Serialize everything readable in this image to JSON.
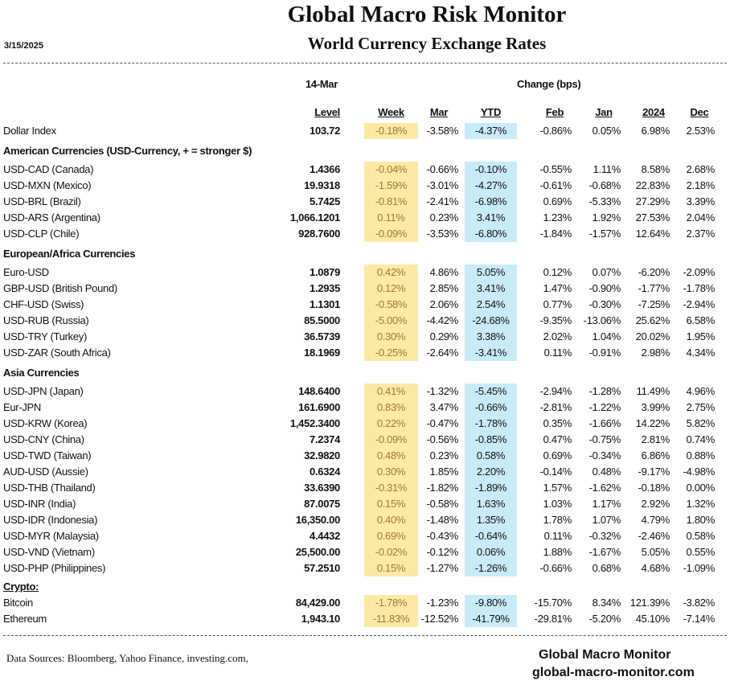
{
  "header": {
    "title": "Global Macro Risk Monitor",
    "subtitle": "World Currency Exchange Rates",
    "date": "3/15/2025"
  },
  "columns": {
    "as_of": "14-Mar",
    "change_label": "Change (bps)",
    "level": "Level",
    "week": "Week",
    "mar": "Mar",
    "ytd": "YTD",
    "feb": "Feb",
    "jan": "Jan",
    "y2024": "2024",
    "dec": "Dec"
  },
  "colors": {
    "week_highlight": "#fde9a6",
    "ytd_highlight": "#c9ebf8"
  },
  "sections": [
    {
      "title": "",
      "rows": [
        {
          "name": "Dollar Index",
          "values": [
            "103.72",
            "-0.18%",
            "-3.58%",
            "-4.37%",
            "-0.86%",
            "0.05%",
            "6.98%",
            "2.53%"
          ]
        }
      ]
    },
    {
      "title": "American Currencies (USD-Currency, + = stronger $)",
      "rows": [
        {
          "name": "USD-CAD (Canada)",
          "values": [
            "1.4366",
            "-0.04%",
            "-0.66%",
            "-0.10%",
            "-0.55%",
            "1.11%",
            "8.58%",
            "2.68%"
          ]
        },
        {
          "name": "USD-MXN  (Mexico)",
          "values": [
            "19.9318",
            "-1.59%",
            "-3.01%",
            "-4.27%",
            "-0.61%",
            "-0.68%",
            "22.83%",
            "2.18%"
          ]
        },
        {
          "name": "USD-BRL (Brazil)",
          "values": [
            "5.7425",
            "-0.81%",
            "-2.41%",
            "-6.98%",
            "0.69%",
            "-5.33%",
            "27.29%",
            "3.39%"
          ]
        },
        {
          "name": "USD-ARS (Argentina)",
          "values": [
            "1,066.1201",
            "0.11%",
            "0.23%",
            "3.41%",
            "1.23%",
            "1.92%",
            "27.53%",
            "2.04%"
          ]
        },
        {
          "name": "USD-CLP (Chile)",
          "values": [
            "928.7600",
            "-0.09%",
            "-3.53%",
            "-6.80%",
            "-1.84%",
            "-1.57%",
            "12.64%",
            "2.37%"
          ]
        }
      ]
    },
    {
      "title": "European/Africa Currencies",
      "rows": [
        {
          "name": "Euro-USD",
          "values": [
            "1.0879",
            "0.42%",
            "4.86%",
            "5.05%",
            "0.12%",
            "0.07%",
            "-6.20%",
            "-2.09%"
          ]
        },
        {
          "name": "GBP-USD (British Pound)",
          "values": [
            "1.2935",
            "0.12%",
            "2.85%",
            "3.41%",
            "1.47%",
            "-0.90%",
            "-1.77%",
            "-1.78%"
          ]
        },
        {
          "name": "CHF-USD (Swiss)",
          "values": [
            "1.1301",
            "-0.58%",
            "2.06%",
            "2.54%",
            "0.77%",
            "-0.30%",
            "-7.25%",
            "-2.94%"
          ]
        },
        {
          "name": "USD-RUB (Russia)",
          "values": [
            "85.5000",
            "-5.00%",
            "-4.42%",
            "-24.68%",
            "-9.35%",
            "-13.06%",
            "25.62%",
            "6.58%"
          ]
        },
        {
          "name": "USD-TRY (Turkey)",
          "values": [
            "36.5739",
            "0.30%",
            "0.29%",
            "3.38%",
            "2.02%",
            "1.04%",
            "20.02%",
            "1.95%"
          ]
        },
        {
          "name": "USD-ZAR (South Africa)",
          "values": [
            "18.1969",
            "-0.25%",
            "-2.64%",
            "-3.41%",
            "0.11%",
            "-0.91%",
            "2.98%",
            "4.34%"
          ]
        }
      ]
    },
    {
      "title": "Asia Currencies",
      "rows": [
        {
          "name": "USD-JPN (Japan)",
          "values": [
            "148.6400",
            "0.41%",
            "-1.32%",
            "-5.45%",
            "-2.94%",
            "-1.28%",
            "11.49%",
            "4.96%"
          ]
        },
        {
          "name": "Eur-JPN",
          "values": [
            "161.6900",
            "0.83%",
            "3.47%",
            "-0.66%",
            "-2.81%",
            "-1.22%",
            "3.99%",
            "2.75%"
          ]
        },
        {
          "name": "USD-KRW (Korea)",
          "values": [
            "1,452.3400",
            "0.22%",
            "-0.47%",
            "-1.78%",
            "0.35%",
            "-1.66%",
            "14.22%",
            "5.82%"
          ]
        },
        {
          "name": "USD-CNY (China)",
          "values": [
            "7.2374",
            "-0.09%",
            "-0.56%",
            "-0.85%",
            "0.47%",
            "-0.75%",
            "2.81%",
            "0.74%"
          ]
        },
        {
          "name": "USD-TWD (Taiwan)",
          "values": [
            "32.9820",
            "0.48%",
            "0.23%",
            "0.58%",
            "0.69%",
            "-0.34%",
            "6.86%",
            "0.88%"
          ]
        },
        {
          "name": "AUD-USD (Aussie)",
          "values": [
            "0.6324",
            "0.30%",
            "1.85%",
            "2.20%",
            "-0.14%",
            "0.48%",
            "-9.17%",
            "-4.98%"
          ]
        },
        {
          "name": "USD-THB  (Thailand)",
          "values": [
            "33.6390",
            "-0.31%",
            "-1.82%",
            "-1.89%",
            "1.57%",
            "-1.62%",
            "-0.18%",
            "0.00%"
          ]
        },
        {
          "name": "USD-INR (India)",
          "values": [
            "87.0075",
            "0.15%",
            "-0.58%",
            "1.63%",
            "1.03%",
            "1.17%",
            "2.92%",
            "1.32%"
          ]
        },
        {
          "name": "USD-IDR (Indonesia)",
          "values": [
            "16,350.00",
            "0.40%",
            "-1.48%",
            "1.35%",
            "1.78%",
            "1.07%",
            "4.79%",
            "1.80%"
          ]
        },
        {
          "name": "USD-MYR (Malaysia)",
          "values": [
            "4.4432",
            "0.69%",
            "-0.43%",
            "-0.64%",
            "0.11%",
            "-0.32%",
            "-2.46%",
            "0.58%"
          ]
        },
        {
          "name": "USD-VND (Vietnam)",
          "values": [
            "25,500.00",
            "-0.02%",
            "-0.12%",
            "0.06%",
            "1.88%",
            "-1.67%",
            "5.05%",
            "0.55%"
          ]
        },
        {
          "name": "USD-PHP (Philippines)",
          "values": [
            "57.2510",
            "0.15%",
            "-1.27%",
            "-1.26%",
            "-0.66%",
            "0.68%",
            "4.68%",
            "-1.09%"
          ]
        }
      ]
    },
    {
      "title": "Crypto:",
      "crypto": true,
      "rows": [
        {
          "name": "Bitcoin",
          "values": [
            "84,429.00",
            "-1.78%",
            "-1.23%",
            "-9.80%",
            "-15.70%",
            "8.34%",
            "121.39%",
            "-3.82%"
          ]
        },
        {
          "name": "Ethereum",
          "values": [
            "1,943.10",
            "-11.83%",
            "-12.52%",
            "-41.79%",
            "-29.81%",
            "-5.20%",
            "45.10%",
            "-7.14%"
          ]
        }
      ]
    }
  ],
  "footer": {
    "sources": "Data Sources:  Bloomberg,  Yahoo Finance, investing.com,",
    "brand": "Global Macro Monitor",
    "website": "global-macro-monitor.com"
  }
}
